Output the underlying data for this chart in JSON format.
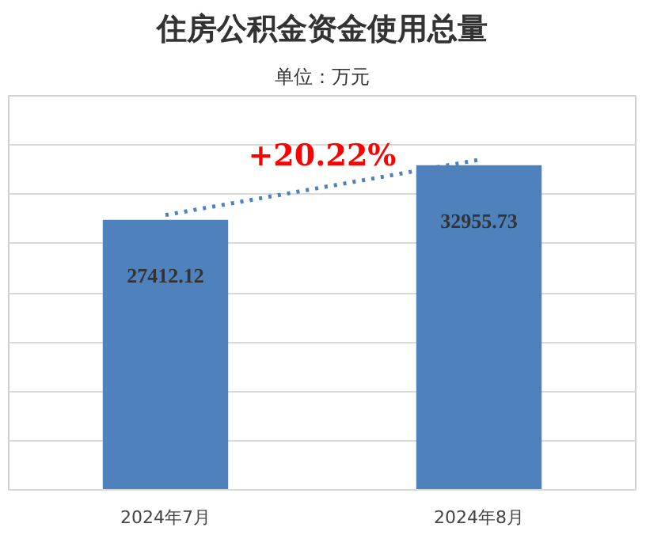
{
  "chart_data": {
    "type": "bar",
    "title": "住房公积金资金使用总量",
    "subtitle": "单位：万元",
    "categories": [
      "2024年7月",
      "2024年8月"
    ],
    "series": [
      {
        "color": "#4f81bd",
        "values": [
          27412.12,
          32955.73
        ],
        "value_labels": [
          "27412.12",
          "32955.73"
        ]
      },
      {
        "type": "line",
        "color": "#4f81bd",
        "line_style": "dotted",
        "marker": "none",
        "values": [
          27900,
          33500
        ]
      }
    ],
    "ylim": [
      0,
      40000
    ],
    "yticks": [
      {
        "value": 0,
        "label": null
      },
      {
        "value": 5000,
        "label": null
      },
      {
        "value": 10000,
        "label": null
      },
      {
        "value": 15000,
        "label": null
      },
      {
        "value": 20000,
        "label": null
      },
      {
        "value": 25000,
        "label": null
      },
      {
        "value": 30000,
        "label": null
      },
      {
        "value": 35000,
        "label": null
      },
      {
        "value": 40000,
        "label": null
      }
    ],
    "tick_labels": "x",
    "grid": "y",
    "annotations": [
      "+20.22%"
    ]
  }
}
